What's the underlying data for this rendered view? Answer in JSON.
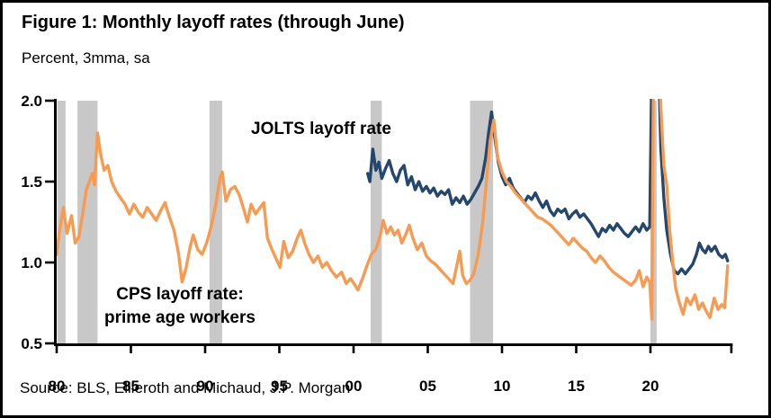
{
  "figure": {
    "title": "Figure 1: Monthly layoff rates (through June)",
    "subtitle": "Percent, 3mma, sa",
    "source": "Source: BLS, Ellieroth and Michaud, J.P. Morgan"
  },
  "annotations": {
    "jolts_label": "JOLTS layoff rate",
    "cps_line1": "CPS layoff rate:",
    "cps_line2": "prime age workers"
  },
  "colors": {
    "jolts_line": "#23476E",
    "cps_line": "#F89B50",
    "recession_band": "#C8C8C8",
    "axis": "#000000",
    "background": "#FFFFFF"
  },
  "chart_data": {
    "type": "line",
    "title": "Monthly layoff rates (through June)",
    "unit_label": "Percent, 3mma, sa",
    "x_axis": {
      "range": [
        1980,
        2025.5
      ],
      "ticks": [
        1980,
        1985,
        1990,
        1995,
        2000,
        2005,
        2010,
        2015,
        2020
      ],
      "tick_labels": [
        "80",
        "85",
        "90",
        "95",
        "00",
        "05",
        "10",
        "15",
        "20"
      ],
      "end_tick": 2025.45
    },
    "y_axis": {
      "range": [
        0.5,
        2.0
      ],
      "ticks": [
        0.5,
        1.0,
        1.5,
        2.0
      ],
      "tick_labels": [
        "0.5",
        "1.0",
        "1.5",
        "2.0"
      ]
    },
    "recession_bands": [
      [
        1980.05,
        1980.6
      ],
      [
        1981.4,
        1982.75
      ],
      [
        1990.3,
        1991.15
      ],
      [
        2001.15,
        2001.9
      ],
      [
        2007.85,
        2009.4
      ],
      [
        2020.0,
        2020.42
      ]
    ],
    "series": [
      {
        "name": "JOLTS layoff rate",
        "color_key": "jolts_line",
        "points": [
          [
            2000.95,
            1.55
          ],
          [
            2001.1,
            1.5
          ],
          [
            2001.3,
            1.7
          ],
          [
            2001.5,
            1.57
          ],
          [
            2001.7,
            1.62
          ],
          [
            2001.9,
            1.52
          ],
          [
            2002.15,
            1.58
          ],
          [
            2002.4,
            1.63
          ],
          [
            2002.65,
            1.55
          ],
          [
            2002.9,
            1.5
          ],
          [
            2003.15,
            1.57
          ],
          [
            2003.4,
            1.6
          ],
          [
            2003.65,
            1.48
          ],
          [
            2003.9,
            1.53
          ],
          [
            2004.15,
            1.45
          ],
          [
            2004.4,
            1.5
          ],
          [
            2004.65,
            1.44
          ],
          [
            2004.9,
            1.47
          ],
          [
            2005.15,
            1.43
          ],
          [
            2005.4,
            1.46
          ],
          [
            2005.65,
            1.41
          ],
          [
            2005.9,
            1.44
          ],
          [
            2006.15,
            1.42
          ],
          [
            2006.4,
            1.45
          ],
          [
            2006.65,
            1.36
          ],
          [
            2006.9,
            1.4
          ],
          [
            2007.15,
            1.37
          ],
          [
            2007.4,
            1.41
          ],
          [
            2007.65,
            1.36
          ],
          [
            2007.9,
            1.39
          ],
          [
            2008.15,
            1.43
          ],
          [
            2008.4,
            1.47
          ],
          [
            2008.65,
            1.52
          ],
          [
            2008.9,
            1.65
          ],
          [
            2009.1,
            1.8
          ],
          [
            2009.3,
            1.93
          ],
          [
            2009.5,
            1.78
          ],
          [
            2009.75,
            1.62
          ],
          [
            2010.0,
            1.53
          ],
          [
            2010.25,
            1.48
          ],
          [
            2010.5,
            1.52
          ],
          [
            2010.75,
            1.46
          ],
          [
            2011.0,
            1.43
          ],
          [
            2011.25,
            1.4
          ],
          [
            2011.5,
            1.37
          ],
          [
            2011.75,
            1.41
          ],
          [
            2012.0,
            1.39
          ],
          [
            2012.25,
            1.43
          ],
          [
            2012.5,
            1.38
          ],
          [
            2012.75,
            1.34
          ],
          [
            2013.0,
            1.38
          ],
          [
            2013.25,
            1.32
          ],
          [
            2013.5,
            1.29
          ],
          [
            2013.75,
            1.33
          ],
          [
            2014.0,
            1.31
          ],
          [
            2014.25,
            1.33
          ],
          [
            2014.5,
            1.27
          ],
          [
            2014.75,
            1.3
          ],
          [
            2015.0,
            1.32
          ],
          [
            2015.25,
            1.28
          ],
          [
            2015.5,
            1.3
          ],
          [
            2015.75,
            1.27
          ],
          [
            2016.0,
            1.24
          ],
          [
            2016.25,
            1.2
          ],
          [
            2016.5,
            1.16
          ],
          [
            2016.75,
            1.21
          ],
          [
            2017.0,
            1.19
          ],
          [
            2017.25,
            1.23
          ],
          [
            2017.5,
            1.2
          ],
          [
            2017.75,
            1.24
          ],
          [
            2018.0,
            1.21
          ],
          [
            2018.25,
            1.18
          ],
          [
            2018.5,
            1.16
          ],
          [
            2018.75,
            1.19
          ],
          [
            2019.0,
            1.22
          ],
          [
            2019.25,
            1.19
          ],
          [
            2019.5,
            1.24
          ],
          [
            2019.75,
            1.2
          ],
          [
            2019.95,
            1.22
          ],
          [
            2020.12,
            2.4
          ],
          [
            2020.5,
            2.4
          ],
          [
            2020.7,
            1.7
          ],
          [
            2020.9,
            1.4
          ],
          [
            2021.1,
            1.2
          ],
          [
            2021.35,
            1.05
          ],
          [
            2021.6,
            0.95
          ],
          [
            2021.85,
            0.93
          ],
          [
            2022.1,
            0.96
          ],
          [
            2022.35,
            0.93
          ],
          [
            2022.6,
            0.96
          ],
          [
            2022.85,
            0.99
          ],
          [
            2023.1,
            1.05
          ],
          [
            2023.3,
            1.12
          ],
          [
            2023.5,
            1.08
          ],
          [
            2023.7,
            1.06
          ],
          [
            2023.9,
            1.1
          ],
          [
            2024.1,
            1.07
          ],
          [
            2024.35,
            1.1
          ],
          [
            2024.6,
            1.05
          ],
          [
            2024.85,
            1.03
          ],
          [
            2025.05,
            1.05
          ],
          [
            2025.2,
            1.01
          ]
        ]
      },
      {
        "name": "CPS layoff rate: prime age workers",
        "color_key": "cps_line",
        "points": [
          [
            1980.0,
            1.05
          ],
          [
            1980.2,
            1.2
          ],
          [
            1980.45,
            1.34
          ],
          [
            1980.7,
            1.18
          ],
          [
            1981.0,
            1.29
          ],
          [
            1981.25,
            1.12
          ],
          [
            1981.5,
            1.16
          ],
          [
            1981.75,
            1.3
          ],
          [
            1982.0,
            1.45
          ],
          [
            1982.2,
            1.5
          ],
          [
            1982.4,
            1.55
          ],
          [
            1982.55,
            1.48
          ],
          [
            1982.75,
            1.8
          ],
          [
            1983.0,
            1.65
          ],
          [
            1983.2,
            1.57
          ],
          [
            1983.45,
            1.6
          ],
          [
            1983.7,
            1.5
          ],
          [
            1984.0,
            1.44
          ],
          [
            1984.3,
            1.4
          ],
          [
            1984.6,
            1.36
          ],
          [
            1984.9,
            1.3
          ],
          [
            1985.2,
            1.36
          ],
          [
            1985.5,
            1.31
          ],
          [
            1985.8,
            1.28
          ],
          [
            1986.1,
            1.34
          ],
          [
            1986.4,
            1.3
          ],
          [
            1986.7,
            1.26
          ],
          [
            1987.0,
            1.32
          ],
          [
            1987.3,
            1.37
          ],
          [
            1987.6,
            1.28
          ],
          [
            1987.9,
            1.2
          ],
          [
            1988.2,
            1.06
          ],
          [
            1988.45,
            0.88
          ],
          [
            1988.7,
            0.96
          ],
          [
            1989.0,
            1.1
          ],
          [
            1989.2,
            1.17
          ],
          [
            1989.5,
            1.08
          ],
          [
            1989.8,
            1.05
          ],
          [
            1990.1,
            1.12
          ],
          [
            1990.4,
            1.22
          ],
          [
            1990.7,
            1.35
          ],
          [
            1991.0,
            1.52
          ],
          [
            1991.15,
            1.56
          ],
          [
            1991.4,
            1.38
          ],
          [
            1991.7,
            1.45
          ],
          [
            1992.0,
            1.47
          ],
          [
            1992.3,
            1.42
          ],
          [
            1992.6,
            1.33
          ],
          [
            1992.85,
            1.25
          ],
          [
            1993.1,
            1.36
          ],
          [
            1993.4,
            1.3
          ],
          [
            1993.7,
            1.34
          ],
          [
            1993.95,
            1.37
          ],
          [
            1994.2,
            1.15
          ],
          [
            1994.5,
            1.08
          ],
          [
            1994.8,
            1.02
          ],
          [
            1995.05,
            0.97
          ],
          [
            1995.3,
            1.13
          ],
          [
            1995.6,
            1.03
          ],
          [
            1995.9,
            1.07
          ],
          [
            1996.2,
            1.15
          ],
          [
            1996.45,
            1.2
          ],
          [
            1996.7,
            1.12
          ],
          [
            1997.0,
            1.05
          ],
          [
            1997.3,
            1.0
          ],
          [
            1997.6,
            1.04
          ],
          [
            1997.9,
            0.97
          ],
          [
            1998.2,
            1.0
          ],
          [
            1998.5,
            0.95
          ],
          [
            1998.85,
            0.91
          ],
          [
            1999.2,
            0.94
          ],
          [
            1999.5,
            0.87
          ],
          [
            1999.8,
            0.9
          ],
          [
            2000.1,
            0.86
          ],
          [
            2000.3,
            0.83
          ],
          [
            2000.6,
            0.9
          ],
          [
            2000.9,
            0.98
          ],
          [
            2001.2,
            1.05
          ],
          [
            2001.5,
            1.08
          ],
          [
            2001.8,
            1.17
          ],
          [
            2002.0,
            1.26
          ],
          [
            2002.25,
            1.18
          ],
          [
            2002.5,
            1.22
          ],
          [
            2002.75,
            1.17
          ],
          [
            2003.0,
            1.2
          ],
          [
            2003.25,
            1.12
          ],
          [
            2003.5,
            1.17
          ],
          [
            2003.75,
            1.23
          ],
          [
            2004.0,
            1.15
          ],
          [
            2004.3,
            1.08
          ],
          [
            2004.6,
            1.12
          ],
          [
            2004.9,
            1.04
          ],
          [
            2005.2,
            1.01
          ],
          [
            2005.5,
            0.99
          ],
          [
            2005.8,
            0.96
          ],
          [
            2006.1,
            0.93
          ],
          [
            2006.4,
            0.9
          ],
          [
            2006.7,
            0.87
          ],
          [
            2007.0,
            1.0
          ],
          [
            2007.15,
            1.07
          ],
          [
            2007.35,
            0.92
          ],
          [
            2007.6,
            0.87
          ],
          [
            2007.85,
            0.89
          ],
          [
            2008.1,
            0.93
          ],
          [
            2008.4,
            1.05
          ],
          [
            2008.7,
            1.25
          ],
          [
            2009.0,
            1.55
          ],
          [
            2009.2,
            1.75
          ],
          [
            2009.45,
            1.88
          ],
          [
            2009.7,
            1.65
          ],
          [
            2010.0,
            1.56
          ],
          [
            2010.3,
            1.5
          ],
          [
            2010.6,
            1.47
          ],
          [
            2010.9,
            1.43
          ],
          [
            2011.2,
            1.4
          ],
          [
            2011.5,
            1.37
          ],
          [
            2011.8,
            1.34
          ],
          [
            2012.1,
            1.31
          ],
          [
            2012.4,
            1.28
          ],
          [
            2012.7,
            1.27
          ],
          [
            2013.0,
            1.25
          ],
          [
            2013.3,
            1.23
          ],
          [
            2013.6,
            1.2
          ],
          [
            2013.9,
            1.17
          ],
          [
            2014.2,
            1.14
          ],
          [
            2014.5,
            1.11
          ],
          [
            2014.8,
            1.15
          ],
          [
            2015.1,
            1.12
          ],
          [
            2015.4,
            1.09
          ],
          [
            2015.7,
            1.07
          ],
          [
            2016.0,
            1.03
          ],
          [
            2016.3,
            1.0
          ],
          [
            2016.6,
            1.04
          ],
          [
            2016.9,
            1.01
          ],
          [
            2017.2,
            0.97
          ],
          [
            2017.5,
            0.94
          ],
          [
            2017.8,
            0.92
          ],
          [
            2018.1,
            0.9
          ],
          [
            2018.4,
            0.88
          ],
          [
            2018.7,
            0.86
          ],
          [
            2019.0,
            0.89
          ],
          [
            2019.25,
            0.95
          ],
          [
            2019.5,
            0.85
          ],
          [
            2019.75,
            0.91
          ],
          [
            2019.95,
            0.88
          ],
          [
            2020.1,
            0.65
          ],
          [
            2020.22,
            2.4
          ],
          [
            2020.55,
            2.4
          ],
          [
            2020.7,
            1.95
          ],
          [
            2020.9,
            1.6
          ],
          [
            2021.1,
            1.48
          ],
          [
            2021.3,
            1.2
          ],
          [
            2021.5,
            1.0
          ],
          [
            2021.7,
            0.84
          ],
          [
            2021.95,
            0.75
          ],
          [
            2022.2,
            0.68
          ],
          [
            2022.45,
            0.78
          ],
          [
            2022.7,
            0.74
          ],
          [
            2023.0,
            0.8
          ],
          [
            2023.25,
            0.71
          ],
          [
            2023.5,
            0.75
          ],
          [
            2023.75,
            0.7
          ],
          [
            2024.0,
            0.66
          ],
          [
            2024.3,
            0.78
          ],
          [
            2024.55,
            0.71
          ],
          [
            2024.8,
            0.74
          ],
          [
            2025.0,
            0.72
          ],
          [
            2025.2,
            0.98
          ]
        ]
      }
    ]
  }
}
